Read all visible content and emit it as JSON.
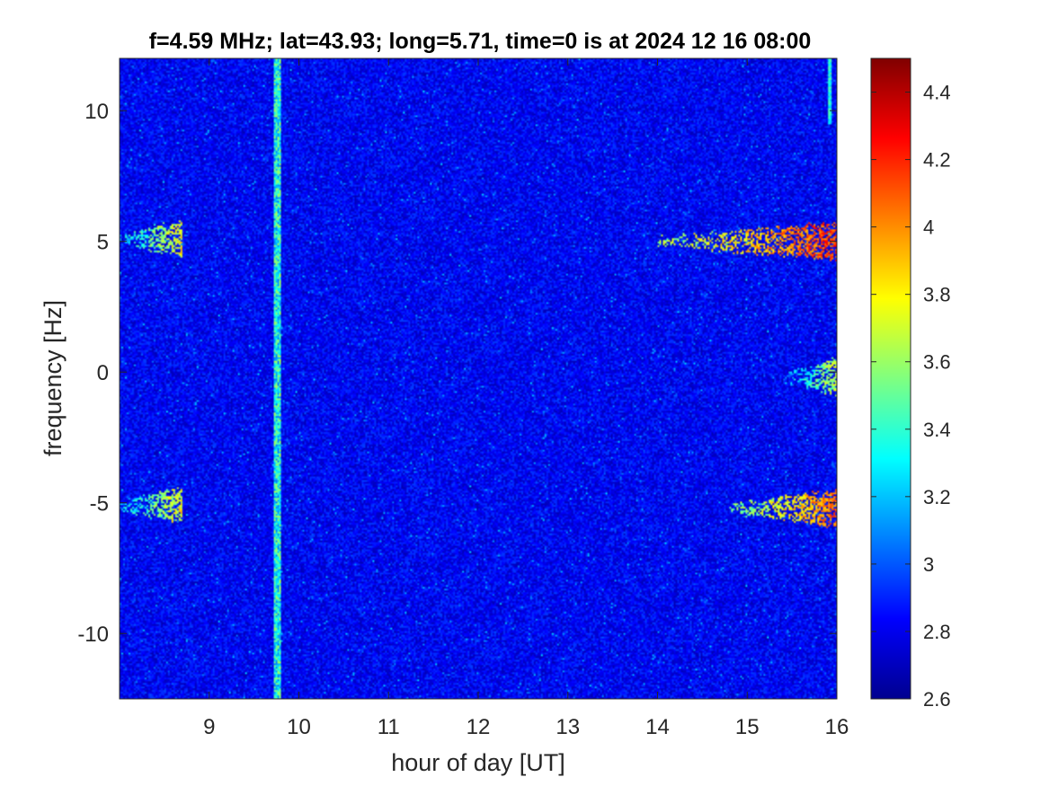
{
  "chart_data": {
    "type": "heatmap",
    "title": "f=4.59 MHz;  lat=43.93; long=5.71, time=0 is at 2024 12 16 08:00",
    "xlabel": "hour of day [UT]",
    "ylabel": "frequency [Hz]",
    "xlim": [
      8.0,
      16.0
    ],
    "ylim": [
      -12.5,
      12.0
    ],
    "x_ticks": [
      9,
      10,
      11,
      12,
      13,
      14,
      15,
      16
    ],
    "x_tick_labels": [
      "9",
      "10",
      "11",
      "12",
      "13",
      "14",
      "15",
      "16"
    ],
    "y_ticks": [
      10,
      5,
      0,
      -5,
      -10
    ],
    "y_tick_labels": [
      "10",
      "5",
      "0",
      "-5",
      "-10"
    ],
    "colormap": "jet",
    "colorbar": {
      "range": [
        2.6,
        4.5
      ],
      "ticks": [
        4.4,
        4.2,
        4,
        3.8,
        3.6,
        3.4,
        3.2,
        3,
        2.8,
        2.6
      ],
      "tick_labels": [
        "4.4",
        "4.2",
        "4",
        "3.8",
        "3.6",
        "3.4",
        "3.2",
        "3",
        "2.8",
        "2.6"
      ],
      "placement": "right"
    },
    "background_level": 2.8,
    "features": [
      {
        "kind": "vertical-band",
        "x": 9.77,
        "x_width": 0.08,
        "level": 3.4
      },
      {
        "kind": "trace",
        "x_start": 8.0,
        "x_end": 8.7,
        "y": 5.1,
        "level": 3.6
      },
      {
        "kind": "trace",
        "x_start": 8.0,
        "x_end": 8.7,
        "y": -5.1,
        "level": 3.6
      },
      {
        "kind": "trace",
        "x_start": 14.0,
        "x_end": 16.0,
        "y": 5.0,
        "level": 4.0
      },
      {
        "kind": "trace",
        "x_start": 14.8,
        "x_end": 16.0,
        "y": -5.2,
        "level": 3.9
      },
      {
        "kind": "trace",
        "x_start": 15.4,
        "x_end": 16.0,
        "y": -0.2,
        "level": 3.5
      },
      {
        "kind": "trace",
        "x_start": 15.9,
        "x_end": 15.94,
        "y_start": 9.5,
        "y_end": 12.0,
        "level": 3.4
      }
    ]
  }
}
